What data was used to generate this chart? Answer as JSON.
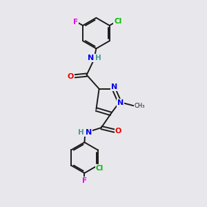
{
  "bg_color": "#e8e8ec",
  "bond_color": "#1a1a1a",
  "bond_width": 1.4,
  "atom_colors": {
    "N": "#0000ee",
    "O": "#ee0000",
    "Cl": "#00bb00",
    "F": "#ee00ee",
    "C": "#1a1a1a",
    "H": "#4a9898"
  },
  "xlim": [
    0,
    10
  ],
  "ylim": [
    0,
    14
  ],
  "figsize": [
    3.0,
    3.0
  ],
  "dpi": 100
}
